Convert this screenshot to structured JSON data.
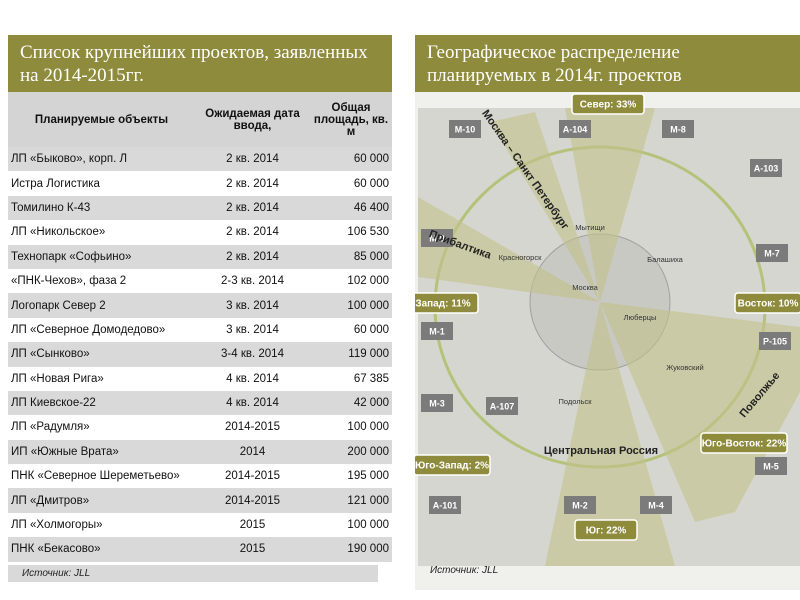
{
  "left_panel": {
    "title": "Список крупнейших проектов, заявленных на 2014-2015гг.",
    "table": {
      "header": [
        "Планируемые объекты",
        "Ожидаемая дата ввода,",
        "Общая площадь, кв. м"
      ],
      "rows": [
        [
          "ЛП «Быково», корп. Л",
          "2 кв. 2014",
          "60 000"
        ],
        [
          "Истра Логистика",
          "2 кв. 2014",
          "60 000"
        ],
        [
          "Томилино К-43",
          "2 кв. 2014",
          "46 400"
        ],
        [
          "ЛП «Никольское»",
          "2 кв. 2014",
          "106 530"
        ],
        [
          "Технопарк «Софьино»",
          "2 кв. 2014",
          "85 000"
        ],
        [
          "«ПНК-Чехов», фаза 2",
          "2-3 кв. 2014",
          "102 000"
        ],
        [
          "Логопарк Север 2",
          "3 кв. 2014",
          "100 000"
        ],
        [
          "ЛП «Северное Домодедово»",
          "3 кв. 2014",
          "60 000"
        ],
        [
          "ЛП «Сынково»",
          "3-4 кв. 2014",
          "119 000"
        ],
        [
          "ЛП «Новая Рига»",
          "4 кв. 2014",
          "67 385"
        ],
        [
          "ЛП Киевское-22",
          "4 кв. 2014",
          "42 000"
        ],
        [
          "ЛП «Радумля»",
          "2014-2015",
          "100 000"
        ],
        [
          "ИП «Южные Врата»",
          "2014",
          "200 000"
        ],
        [
          "ПНК «Северное Шереметьево»",
          "2014-2015",
          "195 000"
        ],
        [
          "ЛП «Дмитров»",
          "2014-2015",
          "121 000"
        ],
        [
          "ЛП «Холмогоры»",
          "2015",
          "100 000"
        ],
        [
          "ПНК «Бекасово»",
          "2015",
          "190 000"
        ]
      ]
    },
    "source": "Источник: JLL"
  },
  "right_panel": {
    "title": "Географическое распределение планируемых в 2014г. проектов",
    "roads": [
      "М-10",
      "А-104",
      "М-8",
      "А-103",
      "М-9",
      "М-7",
      "М-1",
      "Р-105",
      "М-3",
      "А-107",
      "М-5",
      "А-101",
      "М-2",
      "М-4"
    ],
    "directions": [
      "Север: 33%",
      "Запад: 11%",
      "Восток: 10%",
      "Юго-Восток: 22%",
      "Юго-Запад: 2%",
      "Юг: 22%"
    ],
    "regions": [
      "Москва – Санкт Петербург",
      "Прибалтика",
      "Поволжье",
      "Центральная Россия"
    ],
    "places": [
      "Мытищи",
      "Красногорск",
      "Москва",
      "Балашиха",
      "Люберцы",
      "Жуковский",
      "Подольск"
    ],
    "source": "Источник: JLL"
  }
}
